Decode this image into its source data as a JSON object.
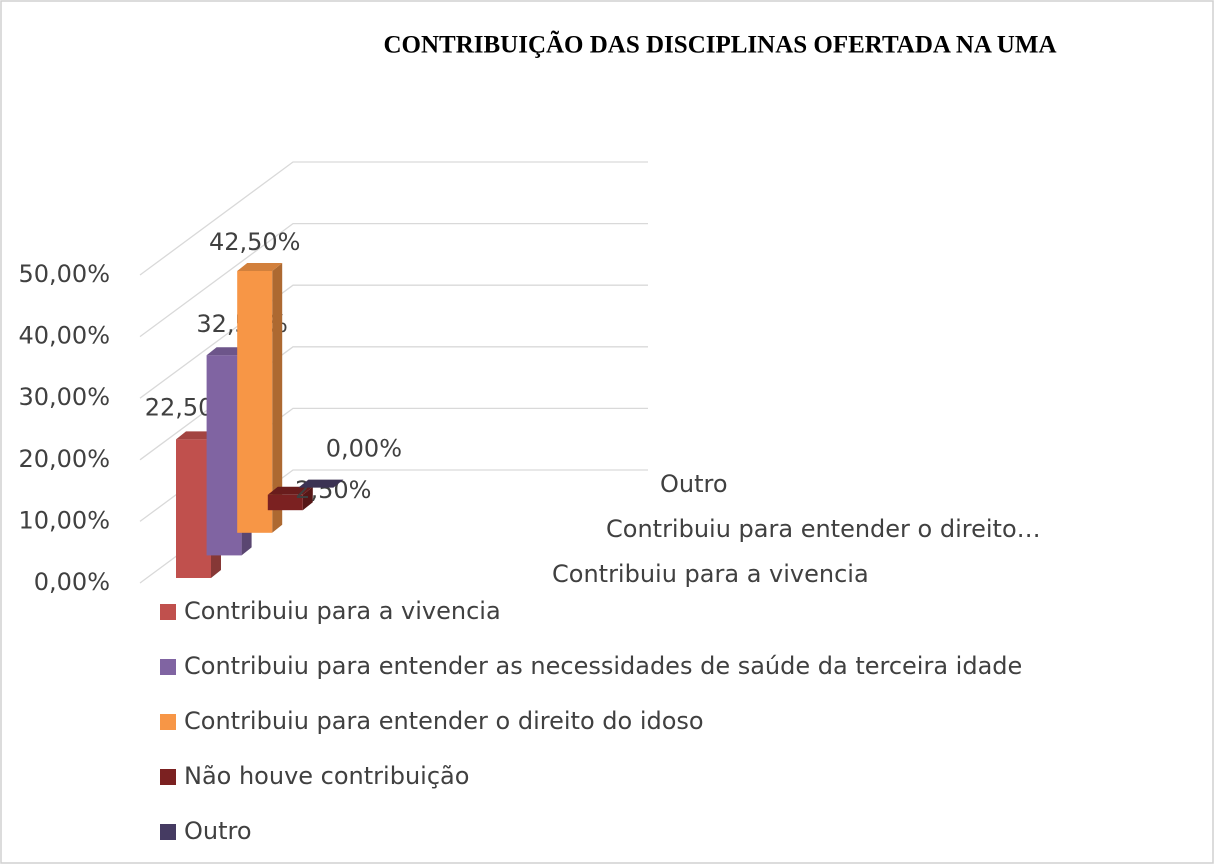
{
  "chart_data": {
    "type": "bar3d",
    "title": "CONTRIBUIÇÃO DAS DISCIPLINAS OFERTADA NA UMA",
    "depth_categories": [
      "Contribuiu para a vivencia",
      null,
      "Contribuiu para entender o direito…",
      null,
      "Outro"
    ],
    "series": [
      {
        "name": "Contribuiu para a vivencia",
        "color": "#c0504d",
        "values": [
          22.5
        ],
        "value_labels": [
          "22,50%"
        ]
      },
      {
        "name": "Contribuiu para entender as necessidades de saúde da terceira idade",
        "color": "#8064a2",
        "values": [
          32.5
        ],
        "value_labels": [
          "32,50%"
        ]
      },
      {
        "name": "Contribuiu para entender o direito do idoso",
        "color": "#f79646",
        "values": [
          42.5
        ],
        "value_labels": [
          "42,50%"
        ]
      },
      {
        "name": "Não houve contribuição",
        "color": "#7b2121",
        "values": [
          2.5
        ],
        "value_labels": [
          "2,50%"
        ]
      },
      {
        "name": "Outro",
        "color": "#453b62",
        "values": [
          0
        ],
        "value_labels": [
          "0,00%"
        ]
      }
    ],
    "ylim": [
      0,
      50
    ],
    "yticks": [
      {
        "value": 0,
        "label": "0,00%"
      },
      {
        "value": 10,
        "label": "10,00%"
      },
      {
        "value": 20,
        "label": "20,00%"
      },
      {
        "value": 30,
        "label": "30,00%"
      },
      {
        "value": 40,
        "label": "40,00%"
      },
      {
        "value": 50,
        "label": "50,00%"
      }
    ],
    "grid": true
  }
}
